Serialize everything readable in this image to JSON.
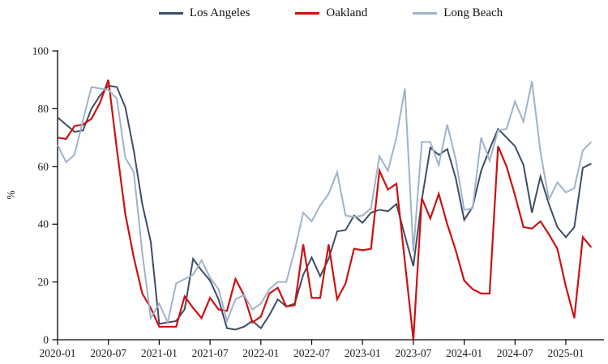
{
  "legend": {
    "items": [
      {
        "label": "Los Angeles",
        "color": "#3E4D66"
      },
      {
        "label": "Oakland",
        "color": "#CC1111"
      },
      {
        "label": "Long Beach",
        "color": "#9FB3C9"
      }
    ]
  },
  "axes": {
    "ylabel": "%",
    "ytick_labels": [
      "0",
      "20",
      "40",
      "60",
      "80",
      "100"
    ],
    "xtick_labels": [
      "2020-01",
      "2020-07",
      "2021-01",
      "2021-07",
      "2022-01",
      "2022-07",
      "2023-01",
      "2023-07",
      "2024-01",
      "2024-07",
      "2025-01"
    ]
  },
  "chart_data": {
    "type": "line",
    "title": "",
    "xlabel": "",
    "ylabel": "%",
    "ylim": [
      0,
      100
    ],
    "yticks": [
      0,
      20,
      40,
      60,
      80,
      100
    ],
    "grid": false,
    "legend_position": "top",
    "xtick_labels": [
      "2020-01",
      "2020-07",
      "2021-01",
      "2021-07",
      "2022-01",
      "2022-07",
      "2023-01",
      "2023-07",
      "2024-01",
      "2024-07",
      "2025-01"
    ],
    "x": [
      "2020-01",
      "2020-02",
      "2020-03",
      "2020-04",
      "2020-05",
      "2020-06",
      "2020-07",
      "2020-08",
      "2020-09",
      "2020-10",
      "2020-11",
      "2020-12",
      "2021-01",
      "2021-02",
      "2021-03",
      "2021-04",
      "2021-05",
      "2021-06",
      "2021-07",
      "2021-08",
      "2021-09",
      "2021-10",
      "2021-11",
      "2021-12",
      "2022-01",
      "2022-02",
      "2022-03",
      "2022-04",
      "2022-05",
      "2022-06",
      "2022-07",
      "2022-08",
      "2022-09",
      "2022-10",
      "2022-11",
      "2022-12",
      "2023-01",
      "2023-02",
      "2023-03",
      "2023-04",
      "2023-05",
      "2023-06",
      "2023-07",
      "2023-08",
      "2023-09",
      "2023-10",
      "2023-11",
      "2023-12",
      "2024-01",
      "2024-02",
      "2024-03",
      "2024-04",
      "2024-05",
      "2024-06",
      "2024-07",
      "2024-08",
      "2024-09",
      "2024-10",
      "2024-11",
      "2024-12",
      "2025-01",
      "2025-02",
      "2025-03",
      "2025-04"
    ],
    "series": [
      {
        "name": "Los Angeles",
        "color": "#3E4D66",
        "values": [
          77,
          74.5,
          72,
          72.5,
          80,
          84.5,
          88,
          87.5,
          80.5,
          65.5,
          47,
          34,
          5.5,
          6,
          6.5,
          10.5,
          28,
          24,
          20.5,
          14,
          4,
          3.5,
          4.5,
          6.5,
          4,
          8.5,
          14,
          11.5,
          12.5,
          22.5,
          28.5,
          22,
          28,
          37.5,
          38,
          43,
          40.5,
          44,
          45,
          44.5,
          47,
          36,
          25.5,
          48.5,
          66.5,
          64,
          66,
          56,
          41.5,
          46,
          58.5,
          66,
          73,
          70,
          67,
          60.5,
          44,
          56.5,
          47,
          39,
          35.5,
          39,
          59.5,
          61
        ]
      },
      {
        "name": "Oakland",
        "color": "#CC1111",
        "values": [
          70,
          69.5,
          74,
          74.5,
          76.5,
          82,
          90,
          66,
          43.5,
          28.5,
          16,
          11,
          4.5,
          4.5,
          4.5,
          15,
          11,
          7.5,
          14.5,
          10.5,
          10,
          21,
          15.5,
          6,
          8,
          16,
          18,
          11.5,
          12,
          33,
          14.5,
          14.5,
          33,
          14,
          19.5,
          31.5,
          31,
          31.5,
          58.5,
          52,
          54,
          27,
          0,
          49,
          42,
          50.5,
          40,
          31,
          20.5,
          17.5,
          16,
          16,
          67,
          60,
          50,
          39,
          38.5,
          41,
          36.5,
          31.5,
          18.5,
          7.5,
          35.5,
          32
        ]
      },
      {
        "name": "Long Beach",
        "color": "#9FB3C9",
        "values": [
          67.5,
          61.5,
          64,
          76,
          87.5,
          87,
          86.5,
          83.5,
          63,
          58,
          30,
          7.5,
          12.5,
          6,
          19.5,
          21,
          22.5,
          27.5,
          21.5,
          17.5,
          6.5,
          14,
          15.5,
          10.5,
          12.5,
          17.5,
          20,
          20,
          31,
          44,
          41,
          46.5,
          50.5,
          58,
          43,
          42.5,
          43,
          45.5,
          63.5,
          58.5,
          70,
          87,
          30.5,
          68.5,
          68.5,
          60.5,
          74.5,
          62.5,
          45,
          45.5,
          70,
          62,
          72.5,
          73,
          82.5,
          75.5,
          89.5,
          65,
          48.5,
          54.5,
          51,
          52.5,
          65.5,
          68.5
        ]
      }
    ]
  }
}
